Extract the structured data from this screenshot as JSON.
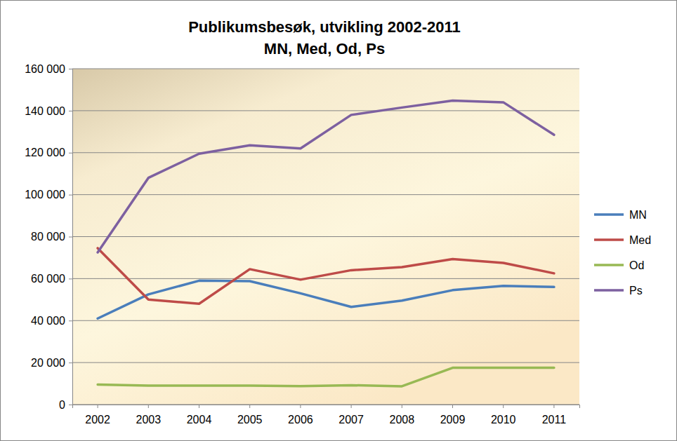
{
  "chart_data": {
    "type": "line",
    "title": "Publikumsbesøk, utvikling 2002-2011",
    "subtitle": "MN, Med, Od, Ps",
    "categories": [
      "2002",
      "2003",
      "2004",
      "2005",
      "2006",
      "2007",
      "2008",
      "2009",
      "2010",
      "2011"
    ],
    "series": [
      {
        "name": "MN",
        "color": "#4a7ebb",
        "values": [
          41000,
          52500,
          59000,
          58800,
          53000,
          46500,
          49500,
          54500,
          56500,
          56000
        ]
      },
      {
        "name": "Med",
        "color": "#be4b48",
        "values": [
          74500,
          50000,
          48000,
          64500,
          59500,
          64000,
          65500,
          69300,
          67500,
          62500
        ]
      },
      {
        "name": "Od",
        "color": "#98b954",
        "values": [
          9500,
          9000,
          9000,
          9000,
          8800,
          9200,
          8700,
          17500,
          17500,
          17500
        ]
      },
      {
        "name": "Ps",
        "color": "#7d60a0",
        "values": [
          72500,
          108000,
          119500,
          123500,
          122000,
          138000,
          141500,
          144800,
          144000,
          128500
        ]
      }
    ],
    "ylim": [
      0,
      160000
    ],
    "yticks": [
      0,
      {
        "value": 20000,
        "label": "20 000"
      },
      {
        "value": 40000,
        "label": "40 000"
      },
      {
        "value": 60000,
        "label": "60 000"
      },
      {
        "value": 80000,
        "label": "80 000"
      },
      {
        "value": 100000,
        "label": "100 000"
      },
      {
        "value": 120000,
        "label": "120 000"
      },
      {
        "value": 140000,
        "label": "140 000"
      },
      {
        "value": 160000,
        "label": "160 000"
      }
    ],
    "grid": true,
    "legend": "right"
  }
}
